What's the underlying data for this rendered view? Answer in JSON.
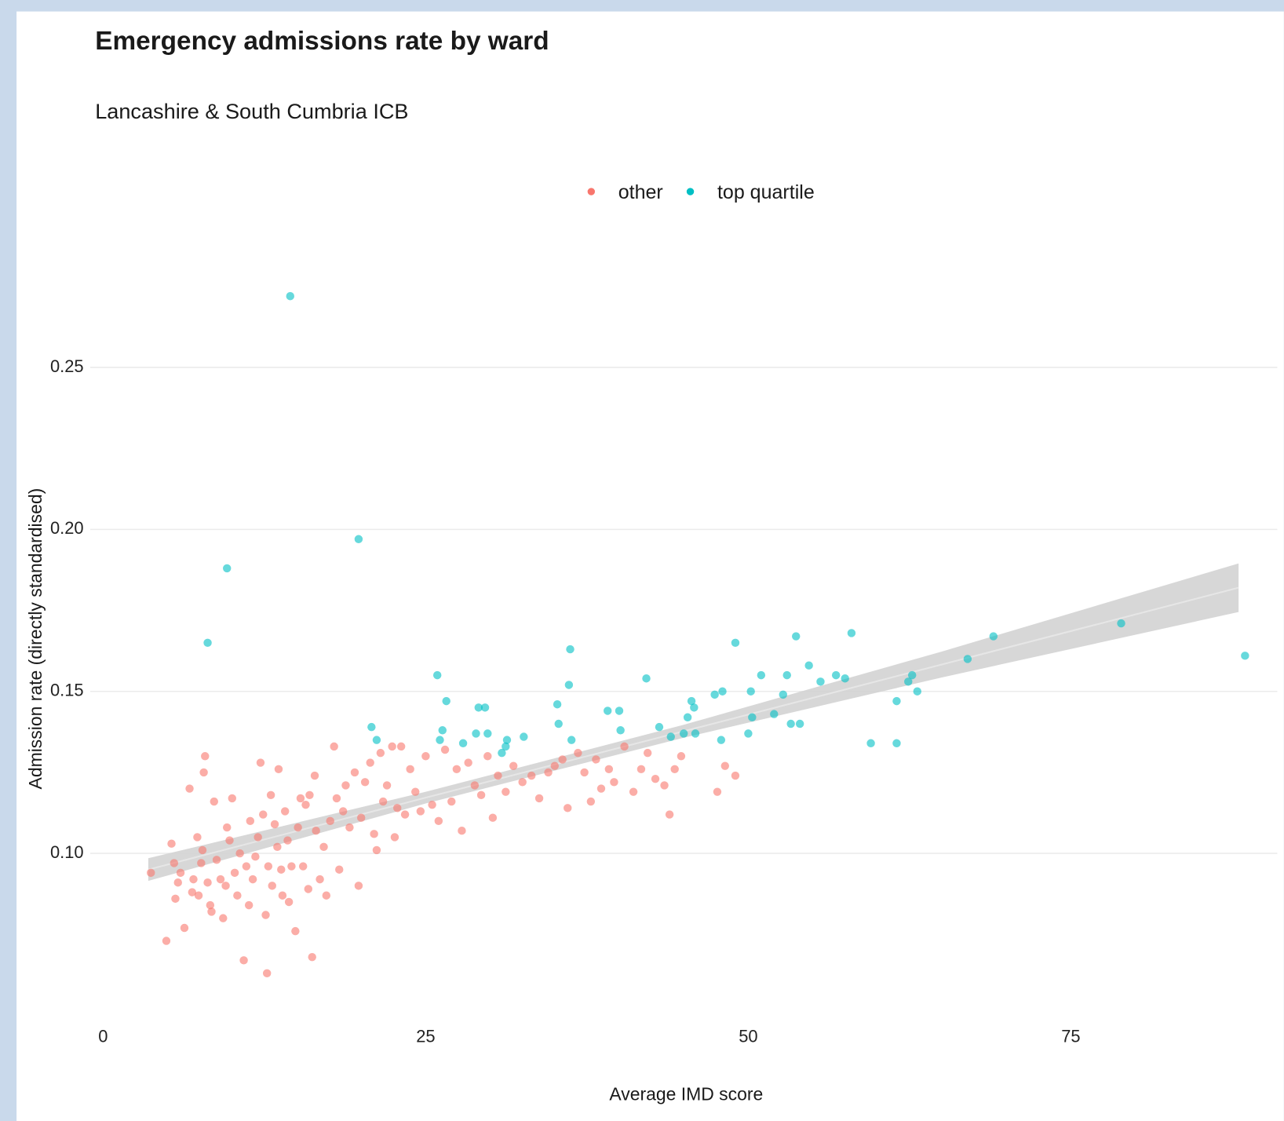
{
  "chart_data": {
    "type": "scatter",
    "title": "Emergency admissions rate by ward",
    "subtitle": "Lancashire & South Cumbria ICB",
    "x_label": "Average IMD score",
    "y_label": "Admission rate (directly standardised)",
    "xlim": [
      -1,
      91
    ],
    "ylim": [
      0.05,
      0.28
    ],
    "xticks": [
      0,
      25,
      50,
      75
    ],
    "yticks": [
      {
        "value": 0.1,
        "label": "0.10"
      },
      0.15,
      {
        "value": 0.2,
        "label": "0.20"
      },
      0.25
    ],
    "grid": "y",
    "legend": "top",
    "series": [
      {
        "name": "other",
        "color": "#F8766D",
        "x": [
          3.7,
          4.9,
          5.3,
          5.5,
          5.6,
          5.8,
          6.0,
          6.3,
          6.7,
          6.9,
          7.0,
          7.3,
          7.4,
          7.6,
          7.7,
          7.8,
          7.9,
          8.1,
          8.3,
          8.4,
          8.6,
          8.8,
          9.1,
          9.3,
          9.5,
          9.6,
          9.8,
          10.0,
          10.2,
          10.4,
          10.6,
          10.9,
          11.1,
          11.3,
          11.4,
          11.6,
          11.8,
          12.0,
          12.2,
          12.4,
          12.6,
          12.7,
          12.8,
          13.0,
          13.1,
          13.3,
          13.5,
          13.6,
          13.8,
          13.9,
          14.1,
          14.3,
          14.4,
          14.6,
          14.9,
          15.1,
          15.3,
          15.5,
          15.7,
          15.9,
          16.0,
          16.2,
          16.4,
          16.5,
          16.8,
          17.1,
          17.3,
          17.6,
          17.9,
          18.1,
          18.3,
          18.6,
          18.8,
          19.1,
          19.5,
          19.8,
          20.0,
          20.3,
          20.7,
          21.0,
          21.2,
          21.5,
          21.7,
          22.0,
          22.4,
          22.6,
          22.8,
          23.1,
          23.4,
          23.8,
          24.2,
          24.6,
          25.0,
          25.5,
          26.0,
          26.5,
          27.0,
          27.4,
          27.8,
          28.3,
          28.8,
          29.3,
          29.8,
          30.2,
          30.6,
          31.2,
          31.8,
          32.5,
          33.2,
          33.8,
          34.5,
          35.0,
          35.6,
          36.0,
          36.8,
          37.3,
          37.8,
          38.2,
          38.6,
          39.2,
          39.6,
          40.4,
          41.1,
          41.7,
          42.2,
          42.8,
          43.5,
          43.9,
          44.3,
          44.8,
          47.6,
          48.2,
          49.0
        ],
        "values": [
          0.094,
          0.073,
          0.103,
          0.097,
          0.086,
          0.091,
          0.094,
          0.077,
          0.12,
          0.088,
          0.092,
          0.105,
          0.087,
          0.097,
          0.101,
          0.125,
          0.13,
          0.091,
          0.084,
          0.082,
          0.116,
          0.098,
          0.092,
          0.08,
          0.09,
          0.108,
          0.104,
          0.117,
          0.094,
          0.087,
          0.1,
          0.067,
          0.096,
          0.084,
          0.11,
          0.092,
          0.099,
          0.105,
          0.128,
          0.112,
          0.081,
          0.063,
          0.096,
          0.118,
          0.09,
          0.109,
          0.102,
          0.126,
          0.095,
          0.087,
          0.113,
          0.104,
          0.085,
          0.096,
          0.076,
          0.108,
          0.117,
          0.096,
          0.115,
          0.089,
          0.118,
          0.068,
          0.124,
          0.107,
          0.092,
          0.102,
          0.087,
          0.11,
          0.133,
          0.117,
          0.095,
          0.113,
          0.121,
          0.108,
          0.125,
          0.09,
          0.111,
          0.122,
          0.128,
          0.106,
          0.101,
          0.131,
          0.116,
          0.121,
          0.133,
          0.105,
          0.114,
          0.133,
          0.112,
          0.126,
          0.119,
          0.113,
          0.13,
          0.115,
          0.11,
          0.132,
          0.116,
          0.126,
          0.107,
          0.128,
          0.121,
          0.118,
          0.13,
          0.111,
          0.124,
          0.119,
          0.127,
          0.122,
          0.124,
          0.117,
          0.125,
          0.127,
          0.129,
          0.114,
          0.131,
          0.125,
          0.116,
          0.129,
          0.12,
          0.126,
          0.122,
          0.133,
          0.119,
          0.126,
          0.131,
          0.123,
          0.121,
          0.112,
          0.126,
          0.13,
          0.119,
          0.127,
          0.124
        ]
      },
      {
        "name": "top quartile",
        "color": "#00BFC4",
        "x": [
          8.1,
          9.6,
          14.5,
          19.8,
          20.8,
          21.2,
          25.9,
          26.3,
          26.6,
          26.1,
          27.9,
          28.9,
          29.1,
          29.6,
          29.8,
          30.9,
          31.2,
          31.3,
          32.6,
          35.2,
          35.3,
          36.1,
          36.2,
          36.3,
          39.1,
          40.0,
          40.1,
          42.1,
          43.1,
          44.0,
          45.0,
          45.3,
          45.6,
          45.8,
          45.9,
          47.4,
          48.0,
          47.9,
          49.0,
          50.0,
          50.2,
          50.3,
          51.0,
          52.0,
          52.7,
          53.0,
          53.3,
          53.7,
          54.0,
          54.7,
          55.6,
          56.8,
          57.5,
          58.0,
          59.5,
          61.5,
          61.5,
          62.4,
          62.7,
          63.1,
          67.0,
          69.0,
          78.9,
          88.5
        ],
        "values": [
          0.165,
          0.188,
          0.272,
          0.197,
          0.139,
          0.135,
          0.155,
          0.138,
          0.147,
          0.135,
          0.134,
          0.137,
          0.145,
          0.145,
          0.137,
          0.131,
          0.133,
          0.135,
          0.136,
          0.146,
          0.14,
          0.152,
          0.163,
          0.135,
          0.144,
          0.144,
          0.138,
          0.154,
          0.139,
          0.136,
          0.137,
          0.142,
          0.147,
          0.145,
          0.137,
          0.149,
          0.15,
          0.135,
          0.165,
          0.137,
          0.15,
          0.142,
          0.155,
          0.143,
          0.149,
          0.155,
          0.14,
          0.167,
          0.14,
          0.158,
          0.153,
          0.155,
          0.154,
          0.168,
          0.134,
          0.134,
          0.147,
          0.153,
          0.155,
          0.15,
          0.16,
          0.167,
          0.171,
          0.161
        ]
      }
    ],
    "fit": {
      "color": "#d3d3d3",
      "x": [
        3.5,
        25,
        45,
        65,
        88
      ],
      "values": [
        0.095,
        0.1172,
        0.1377,
        0.1583,
        0.182
      ],
      "lower": [
        0.0915,
        0.1154,
        0.1357,
        0.1543,
        0.1745
      ],
      "upper": [
        0.0985,
        0.119,
        0.1397,
        0.1623,
        0.1895
      ]
    }
  }
}
